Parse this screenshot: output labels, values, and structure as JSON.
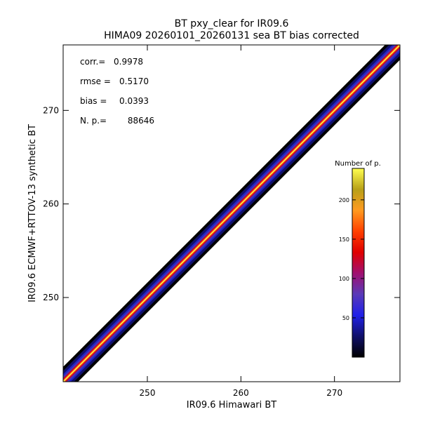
{
  "chart_data": {
    "type": "heatmap",
    "title": "BT pxy_clear for IR09.6",
    "subtitle": "HIMA09 20260101_20260131 sea BT bias corrected",
    "xlabel": "IR09.6 Himawari BT",
    "ylabel": "IR09.6 ECMWF+RTTOV-13 synthetic BT",
    "xlim": [
      241,
      277
    ],
    "ylim": [
      241,
      277
    ],
    "x_ticks": [
      250,
      260,
      270
    ],
    "y_ticks": [
      250,
      260,
      270
    ],
    "x_tick_labels": [
      "250",
      "260",
      "270"
    ],
    "y_tick_labels": [
      "250",
      "260",
      "270"
    ],
    "grid": false,
    "density_ridge": {
      "x": [
        241,
        245,
        250,
        255,
        260,
        265,
        270,
        275,
        277
      ],
      "y": [
        241,
        245,
        250,
        255,
        260,
        265,
        270,
        275,
        277
      ]
    },
    "stats": [
      {
        "label": "corr.=",
        "value": "0.9978"
      },
      {
        "label": "rmse =",
        "value": "0.5170"
      },
      {
        "label": "bias =",
        "value": "0.0393"
      },
      {
        "label": "N. p.=",
        "value": "88646"
      }
    ],
    "colorbar": {
      "title": "Number of p.",
      "min": 0,
      "max": 240,
      "ticks": [
        50,
        100,
        150,
        200
      ],
      "tick_labels": [
        "50",
        "100",
        "150",
        "200"
      ],
      "placement": "right-inside",
      "colors": [
        "#000000",
        "#10106a",
        "#2020e8",
        "#5a3ab8",
        "#a01070",
        "#e00000",
        "#ff4000",
        "#ff9a20",
        "#b8a018",
        "#ffff50"
      ]
    }
  }
}
